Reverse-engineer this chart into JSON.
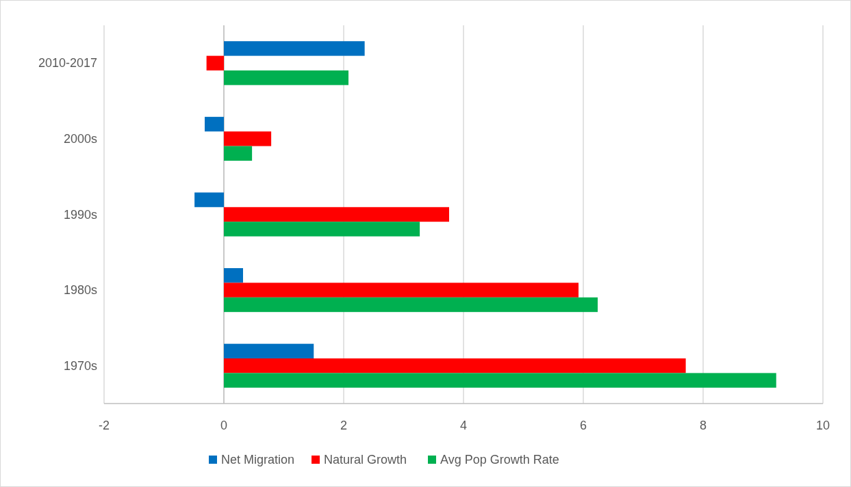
{
  "chart_data": {
    "type": "bar",
    "orientation": "horizontal",
    "categories": [
      "2010-2017",
      "2000s",
      "1990s",
      "1980s",
      "1970s"
    ],
    "series": [
      {
        "name": "Net Migration",
        "color": "#0070c0",
        "values": [
          2.35,
          -0.32,
          -0.49,
          0.32,
          1.5
        ]
      },
      {
        "name": "Natural Growth",
        "color": "#ff0000",
        "values": [
          -0.29,
          0.79,
          3.76,
          5.92,
          7.71
        ]
      },
      {
        "name": "Avg Pop Growth Rate",
        "color": "#00b050",
        "values": [
          2.08,
          0.47,
          3.27,
          6.24,
          9.22
        ]
      }
    ],
    "xlim": [
      -2,
      10
    ],
    "xticks": [
      -2,
      0,
      2,
      4,
      6,
      8,
      10
    ],
    "grid": "x",
    "legend": "bottom"
  }
}
